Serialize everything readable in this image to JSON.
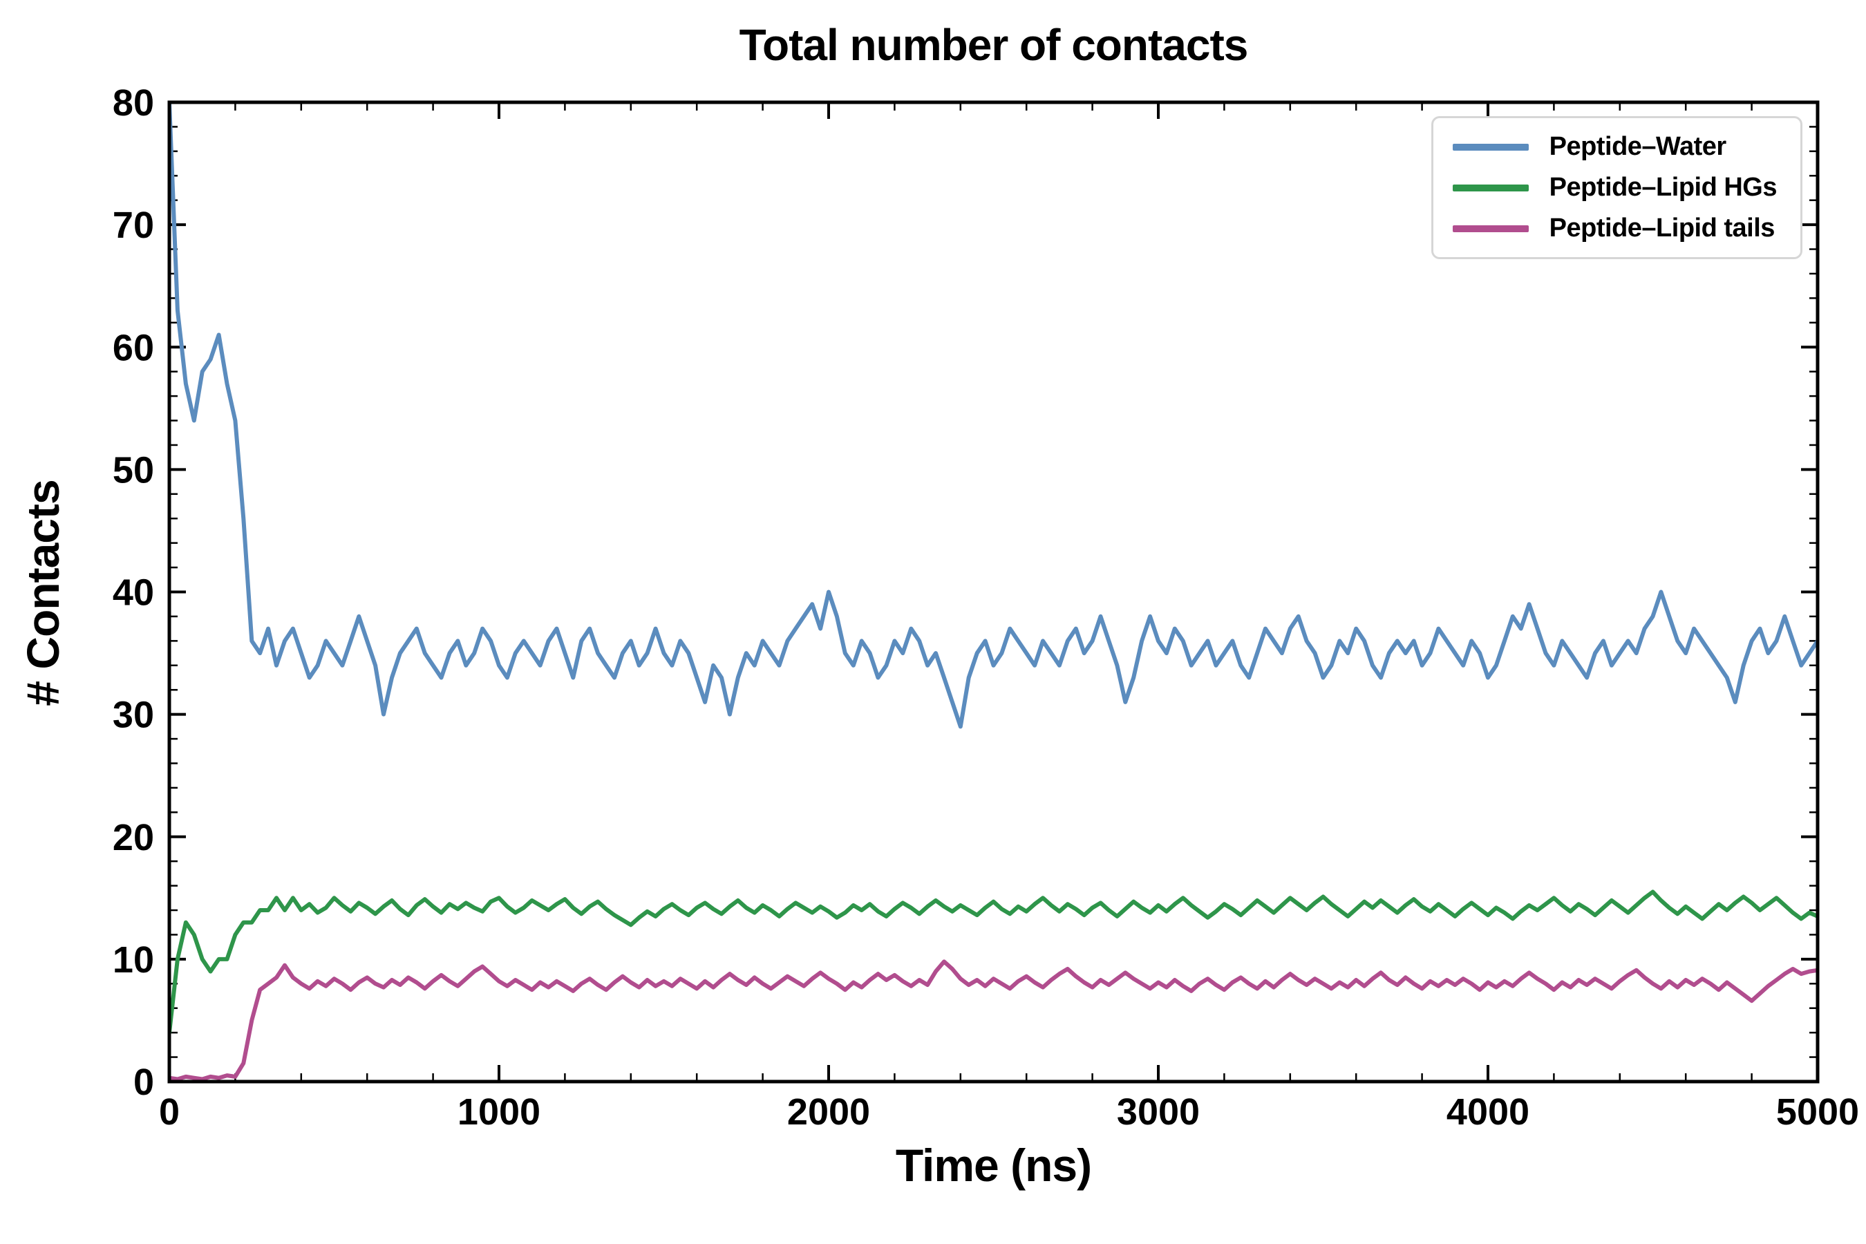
{
  "chart": {
    "axis_color": "#000000",
    "background": "#ffffff",
    "legend_border_color": "#d6d6d6"
  },
  "chart_data": {
    "type": "line",
    "title": "Total number of contacts",
    "xlabel": "Time (ns)",
    "ylabel": "# Contacts",
    "xlim": [
      0,
      5000
    ],
    "ylim": [
      0,
      80
    ],
    "xticks": [
      0,
      1000,
      2000,
      3000,
      4000,
      5000
    ],
    "yticks": [
      0,
      10,
      20,
      30,
      40,
      50,
      60,
      70,
      80
    ],
    "x_minor_step": 200,
    "y_minor_step": 2,
    "grid": false,
    "legend_position": "upper right",
    "x_start": 0,
    "x_step": 25,
    "series": [
      {
        "name": "Peptide–Water",
        "color": "#5b8cbe",
        "values": [
          80,
          63,
          57,
          54,
          58,
          59,
          61,
          57,
          54,
          46,
          36,
          35,
          37,
          34,
          36,
          37,
          35,
          33,
          34,
          36,
          35,
          34,
          36,
          38,
          36,
          34,
          30,
          33,
          35,
          36,
          37,
          35,
          34,
          33,
          35,
          36,
          34,
          35,
          37,
          36,
          34,
          33,
          35,
          36,
          35,
          34,
          36,
          37,
          35,
          33,
          36,
          37,
          35,
          34,
          33,
          35,
          36,
          34,
          35,
          37,
          35,
          34,
          36,
          35,
          33,
          31,
          34,
          33,
          30,
          33,
          35,
          34,
          36,
          35,
          34,
          36,
          37,
          38,
          39,
          37,
          40,
          38,
          35,
          34,
          36,
          35,
          33,
          34,
          36,
          35,
          37,
          36,
          34,
          35,
          33,
          31,
          29,
          33,
          35,
          36,
          34,
          35,
          37,
          36,
          35,
          34,
          36,
          35,
          34,
          36,
          37,
          35,
          36,
          38,
          36,
          34,
          31,
          33,
          36,
          38,
          36,
          35,
          37,
          36,
          34,
          35,
          36,
          34,
          35,
          36,
          34,
          33,
          35,
          37,
          36,
          35,
          37,
          38,
          36,
          35,
          33,
          34,
          36,
          35,
          37,
          36,
          34,
          33,
          35,
          36,
          35,
          36,
          34,
          35,
          37,
          36,
          35,
          34,
          36,
          35,
          33,
          34,
          36,
          38,
          37,
          39,
          37,
          35,
          34,
          36,
          35,
          34,
          33,
          35,
          36,
          34,
          35,
          36,
          35,
          37,
          38,
          40,
          38,
          36,
          35,
          37,
          36,
          35,
          34,
          33,
          31,
          34,
          36,
          37,
          35,
          36,
          38,
          36,
          34,
          35,
          36
        ]
      },
      {
        "name": "Peptide–Lipid HGs",
        "color": "#2e954a",
        "values": [
          4,
          10,
          13,
          12,
          10,
          9,
          10,
          10,
          12,
          13,
          13,
          14,
          14,
          15,
          14,
          15,
          14,
          14.5,
          13.8,
          14.2,
          15,
          14.4,
          13.9,
          14.6,
          14.2,
          13.7,
          14.3,
          14.8,
          14.1,
          13.6,
          14.4,
          14.9,
          14.3,
          13.8,
          14.5,
          14.1,
          14.6,
          14.2,
          13.9,
          14.7,
          15,
          14.3,
          13.8,
          14.2,
          14.8,
          14.4,
          14,
          14.5,
          14.9,
          14.2,
          13.7,
          14.3,
          14.7,
          14.1,
          13.6,
          13.2,
          12.8,
          13.4,
          13.9,
          13.5,
          14.1,
          14.5,
          14,
          13.6,
          14.2,
          14.6,
          14.1,
          13.7,
          14.3,
          14.8,
          14.2,
          13.8,
          14.4,
          14,
          13.5,
          14.1,
          14.6,
          14.2,
          13.8,
          14.3,
          13.9,
          13.4,
          13.8,
          14.4,
          14,
          14.5,
          13.9,
          13.5,
          14.1,
          14.6,
          14.2,
          13.7,
          14.3,
          14.8,
          14.3,
          13.9,
          14.4,
          14,
          13.6,
          14.2,
          14.7,
          14.1,
          13.7,
          14.3,
          13.9,
          14.5,
          15,
          14.4,
          13.9,
          14.5,
          14.1,
          13.6,
          14.2,
          14.6,
          14,
          13.5,
          14.1,
          14.7,
          14.2,
          13.8,
          14.4,
          13.9,
          14.5,
          15,
          14.4,
          13.9,
          13.4,
          13.9,
          14.5,
          14.1,
          13.6,
          14.2,
          14.8,
          14.3,
          13.8,
          14.4,
          15,
          14.5,
          14,
          14.6,
          15.1,
          14.5,
          14,
          13.5,
          14.1,
          14.7,
          14.2,
          14.8,
          14.3,
          13.8,
          14.4,
          14.9,
          14.3,
          13.9,
          14.5,
          14,
          13.5,
          14.1,
          14.6,
          14.1,
          13.6,
          14.2,
          13.8,
          13.3,
          13.9,
          14.4,
          14,
          14.5,
          15,
          14.4,
          13.9,
          14.5,
          14.1,
          13.6,
          14.2,
          14.8,
          14.3,
          13.8,
          14.4,
          15,
          15.5,
          14.8,
          14.2,
          13.7,
          14.3,
          13.8,
          13.3,
          13.9,
          14.5,
          14,
          14.6,
          15.1,
          14.6,
          14,
          14.5,
          15,
          14.4,
          13.8,
          13.3,
          13.8,
          13.5
        ]
      },
      {
        "name": "Peptide–Lipid tails",
        "color": "#b14d8e",
        "values": [
          0.3,
          0.2,
          0.4,
          0.3,
          0.2,
          0.4,
          0.3,
          0.5,
          0.4,
          1.5,
          5,
          7.5,
          8,
          8.5,
          9.5,
          8.5,
          8,
          7.6,
          8.2,
          7.8,
          8.4,
          8,
          7.5,
          8.1,
          8.5,
          8,
          7.7,
          8.3,
          7.9,
          8.5,
          8.1,
          7.6,
          8.2,
          8.7,
          8.2,
          7.8,
          8.4,
          9,
          9.4,
          8.8,
          8.2,
          7.8,
          8.3,
          7.9,
          7.5,
          8.1,
          7.7,
          8.2,
          7.8,
          7.4,
          8,
          8.4,
          7.9,
          7.5,
          8.1,
          8.6,
          8.1,
          7.7,
          8.3,
          7.8,
          8.2,
          7.8,
          8.4,
          8,
          7.6,
          8.2,
          7.7,
          8.3,
          8.8,
          8.3,
          7.9,
          8.5,
          8,
          7.6,
          8.1,
          8.6,
          8.2,
          7.8,
          8.4,
          8.9,
          8.4,
          8,
          7.5,
          8.1,
          7.7,
          8.3,
          8.8,
          8.3,
          8.7,
          8.2,
          7.8,
          8.3,
          7.9,
          9,
          9.8,
          9.2,
          8.4,
          7.9,
          8.3,
          7.8,
          8.4,
          8,
          7.6,
          8.2,
          8.6,
          8.1,
          7.7,
          8.3,
          8.8,
          9.2,
          8.6,
          8.1,
          7.7,
          8.3,
          7.9,
          8.4,
          8.9,
          8.4,
          8,
          7.6,
          8.1,
          7.7,
          8.3,
          7.8,
          7.4,
          8,
          8.4,
          7.9,
          7.5,
          8.1,
          8.5,
          8,
          7.6,
          8.2,
          7.7,
          8.3,
          8.8,
          8.3,
          7.9,
          8.4,
          8,
          7.6,
          8.1,
          7.7,
          8.3,
          7.8,
          8.4,
          8.9,
          8.3,
          7.9,
          8.5,
          8,
          7.6,
          8.2,
          7.8,
          8.3,
          7.9,
          8.4,
          8,
          7.5,
          8.1,
          7.7,
          8.2,
          7.8,
          8.4,
          8.9,
          8.4,
          8,
          7.5,
          8.1,
          7.7,
          8.3,
          7.9,
          8.4,
          8,
          7.6,
          8.2,
          8.7,
          9.1,
          8.5,
          8,
          7.6,
          8.2,
          7.7,
          8.3,
          7.9,
          8.4,
          8,
          7.5,
          8.1,
          7.6,
          7.1,
          6.6,
          7.2,
          7.8,
          8.3,
          8.8,
          9.2,
          8.8,
          9,
          9.1
        ]
      }
    ]
  }
}
